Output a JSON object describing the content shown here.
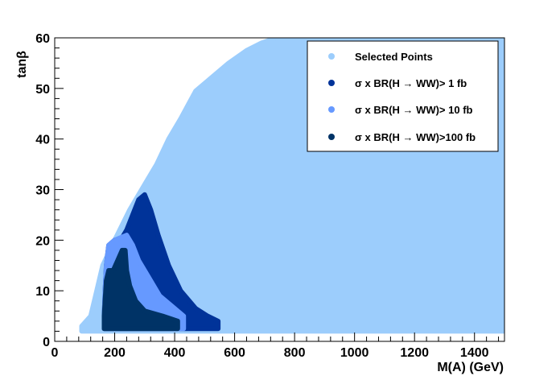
{
  "chart_data": {
    "type": "scatter",
    "title": "",
    "xlabel": "M(A) (GeV)",
    "ylabel": "tanβ",
    "xlim": [
      0,
      1500
    ],
    "ylim": [
      0,
      60
    ],
    "xticks": [
      "0",
      "200",
      "400",
      "600",
      "800",
      "1000",
      "1200",
      "1400"
    ],
    "yticks": [
      "0",
      "10",
      "20",
      "30",
      "40",
      "50",
      "60"
    ],
    "legend_position": "top-right",
    "series": [
      {
        "name": "Selected Points",
        "color": "#9ccdfc",
        "region_boundary": [
          [
            90,
            2
          ],
          [
            1500,
            2
          ],
          [
            1500,
            60
          ],
          [
            740,
            60
          ],
          [
            690,
            59
          ],
          [
            640,
            57.5
          ],
          [
            580,
            55
          ],
          [
            520,
            52
          ],
          [
            470,
            49.5
          ],
          [
            420,
            44
          ],
          [
            380,
            40
          ],
          [
            340,
            35
          ],
          [
            300,
            31
          ],
          [
            250,
            26
          ],
          [
            200,
            20
          ],
          [
            160,
            15
          ],
          [
            140,
            10
          ],
          [
            120,
            5
          ],
          [
            90,
            3
          ]
        ]
      },
      {
        "name": "σ x BR(H → WW)>  1 fb",
        "color": "#003399",
        "region_boundary": [
          [
            165,
            2.5
          ],
          [
            545,
            2.5
          ],
          [
            545,
            4
          ],
          [
            510,
            5
          ],
          [
            470,
            6.5
          ],
          [
            420,
            10
          ],
          [
            380,
            15
          ],
          [
            345,
            21
          ],
          [
            320,
            26
          ],
          [
            300,
            29
          ],
          [
            280,
            28
          ],
          [
            260,
            25
          ],
          [
            240,
            22
          ],
          [
            220,
            20
          ],
          [
            200,
            20
          ],
          [
            180,
            19
          ],
          [
            172,
            15
          ],
          [
            168,
            10
          ],
          [
            165,
            5
          ]
        ]
      },
      {
        "name": "σ x BR(H → WW)> 10 fb",
        "color": "#6699ff",
        "region_boundary": [
          [
            165,
            2.5
          ],
          [
            430,
            2.5
          ],
          [
            430,
            5
          ],
          [
            400,
            6.5
          ],
          [
            350,
            9
          ],
          [
            310,
            13
          ],
          [
            280,
            16
          ],
          [
            260,
            19
          ],
          [
            240,
            21
          ],
          [
            220,
            20.5
          ],
          [
            200,
            20
          ],
          [
            180,
            19
          ],
          [
            172,
            15
          ],
          [
            168,
            10
          ],
          [
            165,
            5
          ]
        ]
      },
      {
        "name": "σ x BR(H → WW)>100 fb",
        "color": "#003366",
        "region_boundary": [
          [
            165,
            2.5
          ],
          [
            410,
            2.5
          ],
          [
            410,
            4
          ],
          [
            360,
            5
          ],
          [
            300,
            6
          ],
          [
            270,
            8
          ],
          [
            250,
            11
          ],
          [
            240,
            14
          ],
          [
            235,
            18
          ],
          [
            225,
            18
          ],
          [
            210,
            16
          ],
          [
            195,
            14
          ],
          [
            180,
            14
          ],
          [
            172,
            12
          ],
          [
            168,
            8
          ],
          [
            165,
            5
          ]
        ]
      }
    ]
  }
}
